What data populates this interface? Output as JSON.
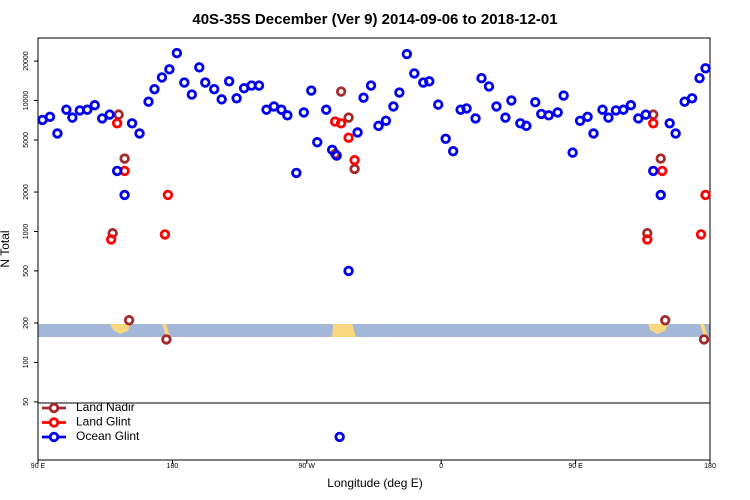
{
  "chart_data": {
    "type": "scatter",
    "title": "40S-35S December (Ver 9)   2014-09-06 to 2018-12-01",
    "xlabel": "Longitude (deg E)",
    "ylabel": "N Total",
    "xlim": [
      90,
      540
    ],
    "ylim": [
      18,
      30000
    ],
    "log_y": true,
    "legend": "lower left",
    "xticks": [
      {
        "value": 90,
        "label": "90 E"
      },
      {
        "value": 180,
        "label": "180"
      },
      {
        "value": 270,
        "label": "90 W"
      },
      {
        "value": 360,
        "label": "0"
      },
      {
        "value": 450,
        "label": "90 E"
      },
      {
        "value": 540,
        "label": "180"
      }
    ],
    "yticks": [
      50,
      100,
      200,
      500,
      1000,
      2000,
      5000,
      10000,
      20000
    ],
    "series": [
      {
        "name": "Land Nadir",
        "color": "#a52a2a",
        "x": [
          140,
          144,
          148,
          151,
          176,
          293,
          289,
          298,
          302,
          498,
          502,
          507,
          510,
          536
        ],
        "values": [
          970,
          7800,
          3600,
          210,
          150,
          11700,
          3900,
          7400,
          3000,
          970,
          7800,
          3600,
          210,
          150
        ]
      },
      {
        "name": "Land Glint",
        "color": "#ff0000",
        "x": [
          139,
          143,
          148,
          175,
          177,
          289,
          293,
          298,
          302,
          498,
          502,
          508,
          534,
          537
        ],
        "values": [
          870,
          6700,
          2900,
          950,
          1900,
          6900,
          6700,
          5200,
          3500,
          870,
          6700,
          2900,
          950,
          1900
        ]
      },
      {
        "name": "Ocean Glint",
        "color": "#0000ee",
        "x": [
          93,
          98,
          103,
          109,
          113,
          118,
          123,
          128,
          133,
          138,
          143,
          148,
          153,
          158,
          164,
          168,
          173,
          178,
          183,
          188,
          193,
          198,
          202,
          208,
          213,
          218,
          223,
          228,
          233,
          238,
          243,
          248,
          253,
          257,
          263,
          268,
          273,
          277,
          283,
          287,
          290,
          298,
          304,
          308,
          313,
          318,
          323,
          328,
          332,
          337,
          342,
          348,
          352,
          358,
          363,
          368,
          373,
          377,
          383,
          387,
          392,
          397,
          403,
          407,
          413,
          417,
          423,
          427,
          432,
          438,
          442,
          448,
          453,
          458,
          462,
          468,
          472,
          477,
          482,
          487,
          492,
          497,
          502,
          507,
          513,
          517,
          523,
          528,
          533,
          537,
          292
        ],
        "values": [
          7100,
          7500,
          5600,
          8500,
          7400,
          8400,
          8500,
          9200,
          7300,
          7800,
          2900,
          1900,
          6700,
          5600,
          9800,
          12200,
          15000,
          17300,
          23000,
          13700,
          11100,
          17900,
          13700,
          12200,
          10200,
          14000,
          10400,
          12400,
          13000,
          13000,
          8500,
          9000,
          8500,
          7700,
          2800,
          8100,
          11900,
          4800,
          8500,
          4200,
          3800,
          500,
          5700,
          10500,
          13000,
          6400,
          7000,
          9000,
          11500,
          22600,
          16100,
          13700,
          14000,
          9300,
          5100,
          4100,
          8500,
          8700,
          7300,
          14800,
          12800,
          9000,
          7400,
          10000,
          6700,
          6400,
          9700,
          7900,
          7700,
          8100,
          10900,
          4000,
          7000,
          7500,
          5600,
          8500,
          7400,
          8400,
          8500,
          9200,
          7300,
          7800,
          2900,
          1900,
          6700,
          5600,
          9800,
          10400,
          14800,
          17600,
          27
        ]
      }
    ]
  }
}
